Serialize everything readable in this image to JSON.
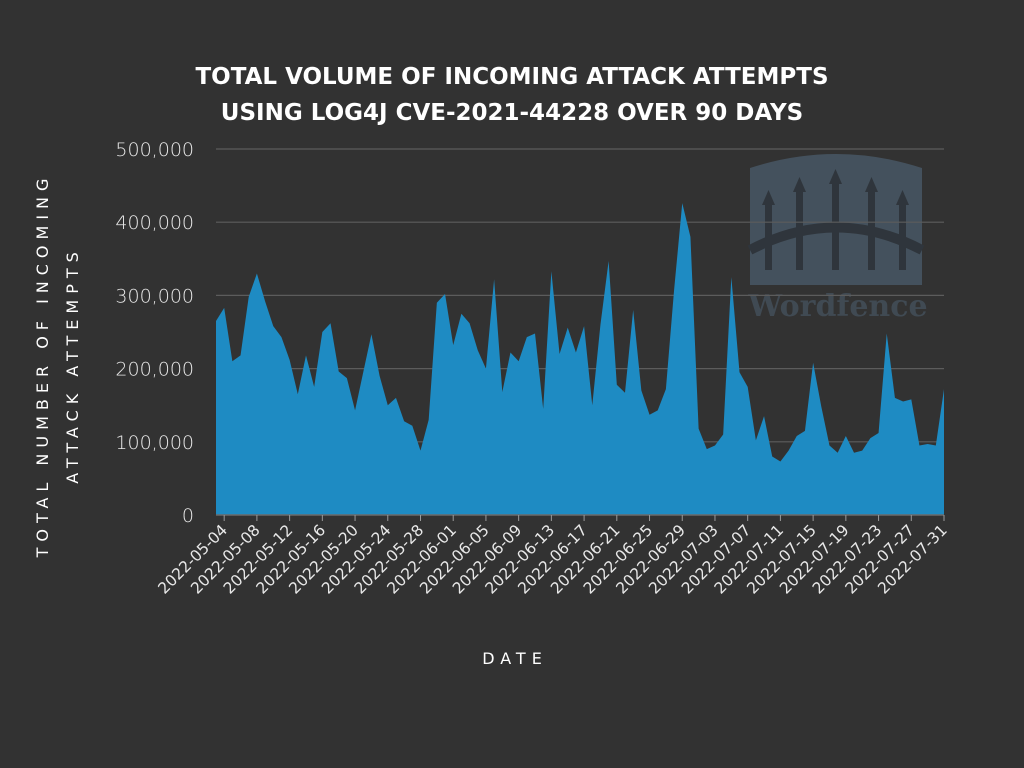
{
  "chart_data": {
    "type": "area",
    "title_lines": [
      "TOTAL VOLUME OF INCOMING ATTACK ATTEMPTS",
      "USING LOG4J CVE-2021-44228 OVER 90 DAYS"
    ],
    "xlabel": "DATE",
    "ylabel_lines": [
      "TOTAL NUMBER OF INCOMING",
      "ATTACK ATTEMPTS"
    ],
    "ylim": [
      0,
      500000
    ],
    "yticks": [
      0,
      100000,
      200000,
      300000,
      400000,
      500000
    ],
    "ytick_labels": [
      "0",
      "100,000",
      "200,000",
      "300,000",
      "400,000",
      "500,000"
    ],
    "xtick_labels": [
      "2022-05-04",
      "2022-05-08",
      "2022-05-12",
      "2022-05-16",
      "2022-05-20",
      "2022-05-24",
      "2022-05-28",
      "2022-06-01",
      "2022-06-05",
      "2022-06-09",
      "2022-06-13",
      "2022-06-17",
      "2022-06-21",
      "2022-06-25",
      "2022-06-29",
      "2022-07-03",
      "2022-07-07",
      "2022-07-11",
      "2022-07-15",
      "2022-07-19",
      "2022-07-23",
      "2022-07-27",
      "2022-07-31"
    ],
    "grid": true,
    "legend": "none",
    "fill_color": "#1e8bc3",
    "watermark": "Wordfence",
    "x_dates": [
      "2022-05-03",
      "2022-05-04",
      "2022-05-05",
      "2022-05-06",
      "2022-05-07",
      "2022-05-08",
      "2022-05-09",
      "2022-05-10",
      "2022-05-11",
      "2022-05-12",
      "2022-05-13",
      "2022-05-14",
      "2022-05-15",
      "2022-05-16",
      "2022-05-17",
      "2022-05-18",
      "2022-05-19",
      "2022-05-20",
      "2022-05-21",
      "2022-05-22",
      "2022-05-23",
      "2022-05-24",
      "2022-05-25",
      "2022-05-26",
      "2022-05-27",
      "2022-05-28",
      "2022-05-29",
      "2022-05-30",
      "2022-05-31",
      "2022-06-01",
      "2022-06-02",
      "2022-06-03",
      "2022-06-04",
      "2022-06-05",
      "2022-06-06",
      "2022-06-07",
      "2022-06-08",
      "2022-06-09",
      "2022-06-10",
      "2022-06-11",
      "2022-06-12",
      "2022-06-13",
      "2022-06-14",
      "2022-06-15",
      "2022-06-16",
      "2022-06-17",
      "2022-06-18",
      "2022-06-19",
      "2022-06-20",
      "2022-06-21",
      "2022-06-22",
      "2022-06-23",
      "2022-06-24",
      "2022-06-25",
      "2022-06-26",
      "2022-06-27",
      "2022-06-28",
      "2022-06-29",
      "2022-06-30",
      "2022-07-01",
      "2022-07-02",
      "2022-07-03",
      "2022-07-04",
      "2022-07-05",
      "2022-07-06",
      "2022-07-07",
      "2022-07-08",
      "2022-07-09",
      "2022-07-10",
      "2022-07-11",
      "2022-07-12",
      "2022-07-13",
      "2022-07-14",
      "2022-07-15",
      "2022-07-16",
      "2022-07-17",
      "2022-07-18",
      "2022-07-19",
      "2022-07-20",
      "2022-07-21",
      "2022-07-22",
      "2022-07-23",
      "2022-07-24",
      "2022-07-25",
      "2022-07-26",
      "2022-07-27",
      "2022-07-28",
      "2022-07-29",
      "2022-07-30",
      "2022-07-31"
    ],
    "values": [
      265000,
      283000,
      210000,
      218000,
      298000,
      330000,
      292000,
      258000,
      243000,
      212000,
      165000,
      218000,
      175000,
      250000,
      262000,
      196000,
      187000,
      143000,
      195000,
      247000,
      190000,
      150000,
      160000,
      128000,
      122000,
      88000,
      130000,
      290000,
      302000,
      232000,
      275000,
      262000,
      225000,
      200000,
      322000,
      168000,
      222000,
      210000,
      243000,
      248000,
      145000,
      333000,
      220000,
      256000,
      222000,
      258000,
      150000,
      260000,
      347000,
      178000,
      167000,
      280000,
      170000,
      137000,
      143000,
      172000,
      307000,
      426000,
      380000,
      118000,
      90000,
      95000,
      110000,
      325000,
      195000,
      175000,
      102000,
      135000,
      80000,
      73000,
      88000,
      108000,
      115000,
      208000,
      148000,
      95000,
      85000,
      108000,
      85000,
      88000,
      105000,
      112000,
      248000,
      160000,
      155000,
      158000,
      95000,
      97000,
      95000,
      172000
    ]
  }
}
